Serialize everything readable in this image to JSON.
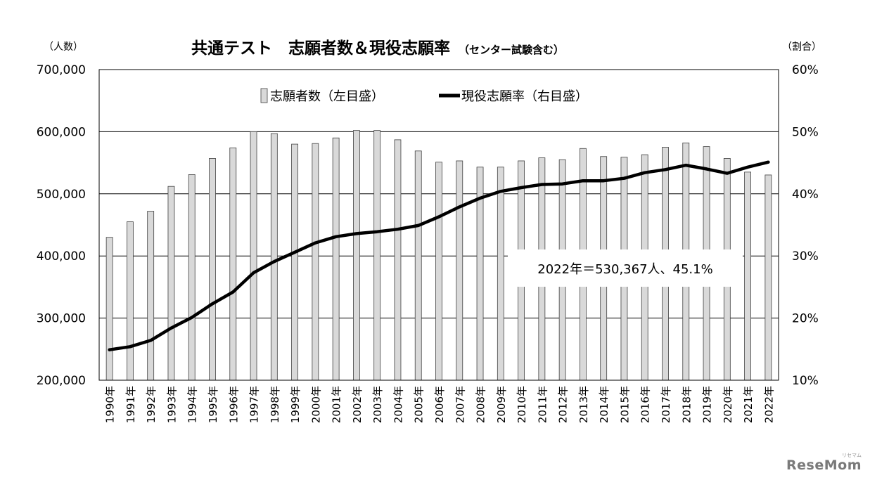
{
  "chart_data": {
    "type": "bar",
    "title": "共通テスト　志願者数＆現役志願率",
    "subtitle": "（センター試験含む）",
    "left_axis_title": "（人数）",
    "right_axis_title": "（割合）",
    "categories": [
      "1990年",
      "1991年",
      "1992年",
      "1993年",
      "1994年",
      "1995年",
      "1996年",
      "1997年",
      "1998年",
      "1999年",
      "2000年",
      "2001年",
      "2002年",
      "2003年",
      "2004年",
      "2005年",
      "2006年",
      "2007年",
      "2008年",
      "2009年",
      "2010年",
      "2011年",
      "2012年",
      "2013年",
      "2014年",
      "2015年",
      "2016年",
      "2017年",
      "2018年",
      "2019年",
      "2020年",
      "2021年",
      "2022年"
    ],
    "ylim_left": [
      200000,
      700000
    ],
    "ylim_right": [
      10,
      60
    ],
    "y_ticks_left": [
      "200,000",
      "300,000",
      "400,000",
      "500,000",
      "600,000",
      "700,000"
    ],
    "y_ticks_right": [
      "10%",
      "20%",
      "30%",
      "40%",
      "50%",
      "60%"
    ],
    "y_tick_values_left": [
      200000,
      300000,
      400000,
      500000,
      600000,
      700000
    ],
    "series": [
      {
        "name": "志願者数（左目盛）",
        "type": "bar",
        "axis": "left",
        "values": [
          430000,
          455000,
          472000,
          512000,
          531000,
          557000,
          574000,
          600000,
          597000,
          580000,
          581000,
          590000,
          602000,
          602000,
          587000,
          569000,
          551000,
          553000,
          543000,
          543000,
          553000,
          558000,
          555000,
          573000,
          560000,
          559000,
          563000,
          575000,
          582000,
          576000,
          557000,
          535000,
          530367
        ]
      },
      {
        "name": "現役志願率（右目盛）",
        "type": "line",
        "axis": "right",
        "values": [
          14.9,
          15.4,
          16.4,
          18.4,
          20.1,
          22.3,
          24.2,
          27.3,
          29.1,
          30.6,
          32.1,
          33.1,
          33.6,
          33.9,
          34.3,
          34.9,
          36.3,
          37.9,
          39.3,
          40.4,
          41.0,
          41.5,
          41.6,
          42.1,
          42.1,
          42.5,
          43.4,
          43.9,
          44.6,
          44.0,
          43.3,
          44.3,
          45.1
        ]
      }
    ],
    "annotation": "2022年＝530,367人、45.1%",
    "grid": true,
    "legend_position": "top-center"
  },
  "watermark": {
    "text": "ReseMom",
    "small": "リセマム"
  },
  "colors": {
    "bar_fill": "#d9d9d9",
    "bar_stroke": "#404040",
    "line": "#000000",
    "grid": "#000000"
  }
}
